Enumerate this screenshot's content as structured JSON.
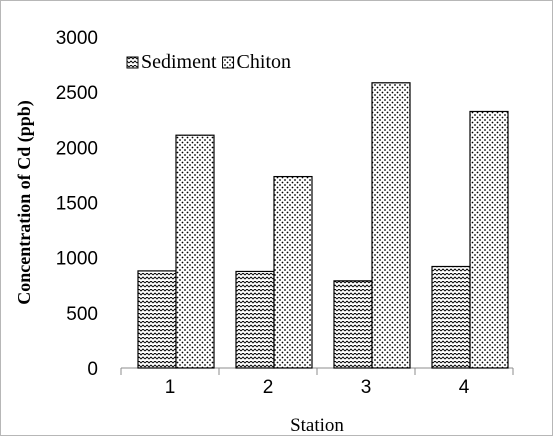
{
  "chart_data": {
    "type": "bar",
    "categories": [
      "1",
      "2",
      "3",
      "4"
    ],
    "series": [
      {
        "name": "Sediment",
        "values": [
          880,
          875,
          790,
          920
        ],
        "pattern": "zigzag"
      },
      {
        "name": "Chiton",
        "values": [
          2110,
          1735,
          2585,
          2325
        ],
        "pattern": "dots"
      }
    ],
    "xlabel": "Station",
    "ylabel": "Concentration of Cd (ppb)",
    "ylim": [
      0,
      3000
    ],
    "yticks": [
      "0",
      "500",
      "1000",
      "1500",
      "2000",
      "2500",
      "3000"
    ],
    "legend_position": "top-left",
    "grid": false
  }
}
